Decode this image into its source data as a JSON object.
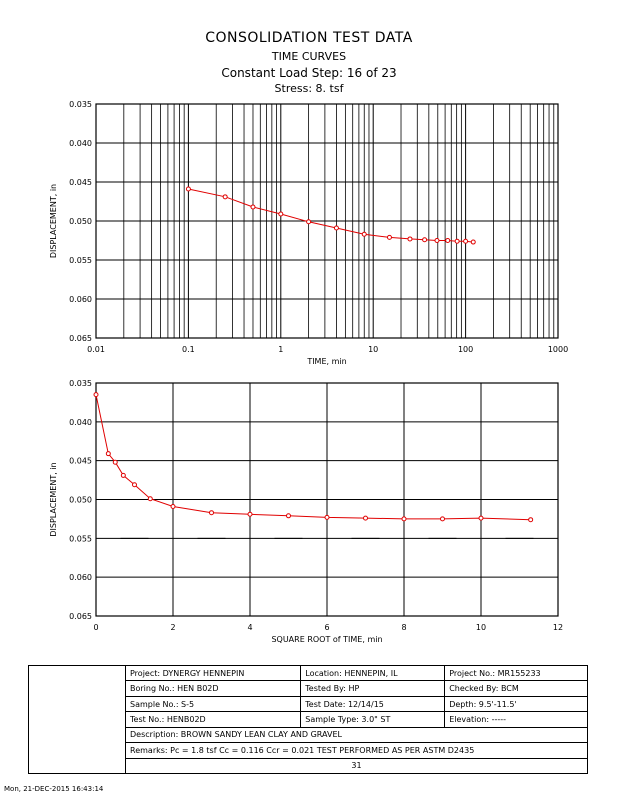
{
  "titles": {
    "main": "CONSOLIDATION TEST DATA",
    "sub": "TIME CURVES",
    "step": "Constant Load Step: 16 of 23",
    "stress": "Stress: 8. tsf"
  },
  "chart_data": [
    {
      "type": "line",
      "xscale": "log",
      "xlabel": "TIME, min",
      "ylabel": "DISPLACEMENT, in",
      "xlim": [
        0.01,
        1000
      ],
      "ylim": [
        0.035,
        0.065
      ],
      "y_inverted": true,
      "xticks": [
        "0.01",
        "0.1",
        "1",
        "10",
        "100",
        "1000"
      ],
      "yticks": [
        "0.035",
        "0.040",
        "0.045",
        "0.050",
        "0.055",
        "0.060",
        "0.065"
      ],
      "series_color": "#e00000",
      "x": [
        0.1,
        0.25,
        0.5,
        1,
        2,
        4,
        8,
        15,
        25,
        36,
        49,
        64,
        81,
        100,
        121
      ],
      "y": [
        0.0459,
        0.0469,
        0.0482,
        0.0491,
        0.0501,
        0.0509,
        0.0517,
        0.0521,
        0.0523,
        0.0524,
        0.0525,
        0.0525,
        0.0526,
        0.0526,
        0.0527
      ]
    },
    {
      "type": "line",
      "xlabel": "SQUARE ROOT of TIME, min",
      "ylabel": "DISPLACEMENT, in",
      "xlim": [
        0,
        12
      ],
      "ylim": [
        0.035,
        0.065
      ],
      "y_inverted": true,
      "xticks": [
        "0",
        "2",
        "4",
        "6",
        "8",
        "10",
        "12"
      ],
      "yticks": [
        "0.035",
        "0.040",
        "0.045",
        "0.050",
        "0.055",
        "0.060",
        "0.065"
      ],
      "series_color": "#e00000",
      "x": [
        0,
        0.32,
        0.5,
        0.71,
        1.0,
        1.41,
        2.0,
        3.0,
        4.0,
        5.0,
        6.0,
        7.0,
        8.0,
        9.0,
        10.0,
        11.29
      ],
      "y": [
        0.0365,
        0.0441,
        0.0452,
        0.0469,
        0.0481,
        0.0499,
        0.0509,
        0.0517,
        0.0519,
        0.0521,
        0.0523,
        0.0524,
        0.0525,
        0.0525,
        0.0524,
        0.0526
      ]
    }
  ],
  "info": {
    "project": "Project: DYNERGY HENNEPIN",
    "location": "Location: HENNEPIN, IL",
    "project_no": "Project No.: MR155233",
    "boring": "Boring No.: HEN B02D",
    "tested_by": "Tested By: HP",
    "checked_by": "Checked By: BCM",
    "sample": "Sample No.: S-5",
    "test_date": "Test Date: 12/14/15",
    "depth": "Depth: 9.5'-11.5'",
    "test_no": "Test No.: HENB02D",
    "sample_type": "Sample Type: 3.0\" ST",
    "elevation": "Elevation: -----",
    "description": "Description: BROWN SANDY LEAN CLAY AND GRAVEL",
    "remarks": "Remarks: Pc = 1.8 tsf Cc = 0.116 Ccr = 0.021 TEST PERFORMED AS PER ASTM D2435",
    "figure": "31"
  },
  "footer": "Mon, 21-DEC-2015 16:43:14"
}
